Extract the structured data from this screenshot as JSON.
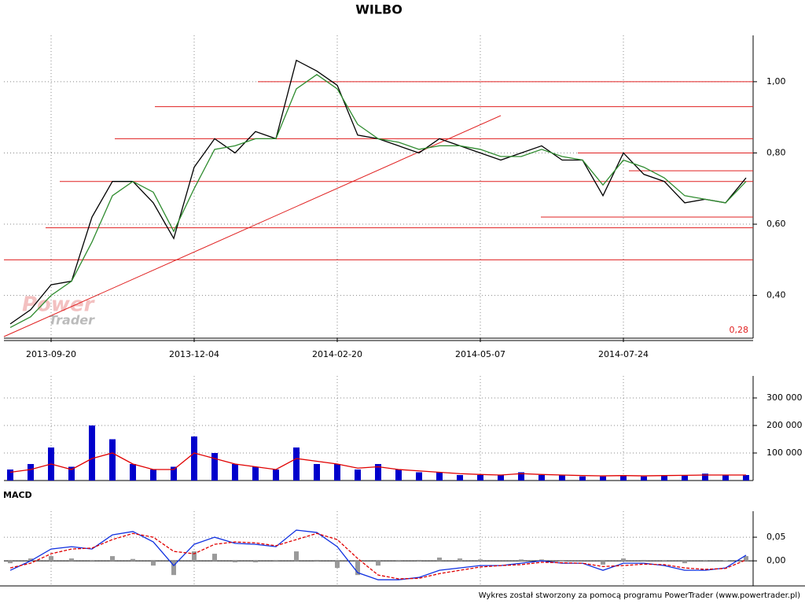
{
  "chart_data": [
    {
      "type": "line",
      "title": "WILBO",
      "categories": [
        null,
        null,
        "2013-09-20",
        null,
        null,
        null,
        null,
        null,
        null,
        "2013-12-04",
        null,
        null,
        null,
        null,
        null,
        null,
        "2014-02-20",
        null,
        null,
        null,
        null,
        null,
        null,
        "2014-05-07",
        null,
        null,
        null,
        null,
        null,
        null,
        "2014-07-24",
        null,
        null,
        null,
        null,
        null,
        null
      ],
      "series": [
        {
          "color": "#000000",
          "values": [
            0.32,
            0.36,
            0.43,
            0.44,
            0.62,
            0.72,
            0.72,
            0.66,
            0.56,
            0.76,
            0.84,
            0.8,
            0.86,
            0.84,
            1.06,
            1.03,
            0.99,
            0.85,
            0.84,
            0.82,
            0.8,
            0.84,
            0.82,
            0.8,
            0.78,
            0.8,
            0.82,
            0.78,
            0.78,
            0.68,
            0.8,
            0.74,
            0.72,
            0.66,
            0.67,
            0.66,
            0.73
          ]
        },
        {
          "color": "#2e8b2e",
          "values": [
            0.31,
            0.34,
            0.4,
            0.44,
            0.55,
            0.68,
            0.72,
            0.69,
            0.58,
            0.7,
            0.81,
            0.82,
            0.84,
            0.84,
            0.98,
            1.02,
            0.98,
            0.88,
            0.84,
            0.83,
            0.81,
            0.82,
            0.82,
            0.81,
            0.79,
            0.79,
            0.81,
            0.79,
            0.78,
            0.71,
            0.78,
            0.76,
            0.73,
            0.68,
            0.67,
            0.66,
            0.72
          ]
        }
      ],
      "ylim": [
        0.28,
        1.13
      ],
      "yticks": [
        {
          "value": 0.4,
          "label": "0,40"
        },
        {
          "value": 0.6,
          "label": "0,60"
        },
        {
          "value": 0.8,
          "label": "0,80"
        },
        {
          "value": 1.0,
          "label": "1,00"
        }
      ],
      "levels": [
        1.0,
        0.93,
        0.84,
        0.8,
        0.75,
        0.72,
        0.62,
        0.59,
        0.5
      ],
      "level_color": "#e02020",
      "low_marker": {
        "value": 0.28,
        "label": "0,28"
      },
      "watermark": [
        "Power",
        "Trader"
      ],
      "grid": true
    },
    {
      "type": "bar",
      "series": [
        {
          "kind": "bar",
          "color": "#0000cc",
          "values": [
            40000,
            60000,
            120000,
            50000,
            200000,
            150000,
            60000,
            40000,
            50000,
            160000,
            100000,
            60000,
            50000,
            40000,
            120000,
            60000,
            60000,
            40000,
            60000,
            40000,
            30000,
            30000,
            20000,
            20000,
            20000,
            30000,
            20000,
            20000,
            15000,
            15000,
            20000,
            15000,
            20000,
            20000,
            25000,
            20000,
            20000
          ]
        },
        {
          "kind": "line",
          "color": "#e00000",
          "values": [
            30000,
            40000,
            60000,
            40000,
            80000,
            100000,
            60000,
            40000,
            40000,
            100000,
            80000,
            60000,
            50000,
            40000,
            80000,
            70000,
            60000,
            45000,
            50000,
            40000,
            35000,
            30000,
            25000,
            22000,
            20000,
            25000,
            22000,
            20000,
            18000,
            17000,
            18000,
            17000,
            18000,
            19000,
            20000,
            20000,
            20000
          ]
        }
      ],
      "ylim": [
        0,
        380000
      ],
      "yticks": [
        {
          "value": 100000,
          "label": "100 000"
        },
        {
          "value": 200000,
          "label": "200 000"
        },
        {
          "value": 300000,
          "label": "300 000"
        }
      ],
      "grid": true
    },
    {
      "type": "line",
      "title": "MACD",
      "series": [
        {
          "kind": "bar",
          "color": "#9a9a9a",
          "values": [
            -0.005,
            0.005,
            0.01,
            0.005,
            -0.002,
            0.01,
            0.004,
            -0.01,
            -0.03,
            0.02,
            0.015,
            -0.003,
            -0.003,
            -0.002,
            0.02,
            0.002,
            -0.015,
            -0.03,
            -0.01,
            -0.002,
            0.002,
            0.007,
            0.005,
            0.003,
            0,
            0.003,
            0.003,
            -0.001,
            0,
            -0.008,
            0.005,
            0.002,
            -0.002,
            -0.005,
            -0.002,
            0.001,
            0.01
          ]
        },
        {
          "kind": "line",
          "color": "#1030e0",
          "values": [
            -0.02,
            0.0,
            0.025,
            0.03,
            0.025,
            0.055,
            0.062,
            0.04,
            -0.01,
            0.035,
            0.05,
            0.037,
            0.035,
            0.03,
            0.065,
            0.06,
            0.03,
            -0.025,
            -0.04,
            -0.04,
            -0.035,
            -0.02,
            -0.015,
            -0.01,
            -0.01,
            -0.005,
            0.0,
            -0.005,
            -0.005,
            -0.02,
            -0.005,
            -0.005,
            -0.01,
            -0.02,
            -0.02,
            -0.015,
            0.012
          ]
        },
        {
          "kind": "dashed",
          "color": "#e00000",
          "values": [
            -0.015,
            -0.005,
            0.015,
            0.025,
            0.027,
            0.045,
            0.058,
            0.05,
            0.02,
            0.015,
            0.035,
            0.04,
            0.038,
            0.032,
            0.045,
            0.058,
            0.045,
            0.005,
            -0.03,
            -0.038,
            -0.037,
            -0.027,
            -0.02,
            -0.013,
            -0.01,
            -0.008,
            -0.003,
            -0.004,
            -0.005,
            -0.012,
            -0.01,
            -0.007,
            -0.008,
            -0.015,
            -0.018,
            -0.016,
            0.002
          ]
        }
      ],
      "ylim": [
        -0.053,
        0.105
      ],
      "yticks": [
        {
          "value": 0,
          "label": "0,00"
        },
        {
          "value": 0.05,
          "label": "0,05"
        }
      ],
      "grid": true
    }
  ],
  "footer": "Wykres został stworzony za pomocą programu PowerTrader (www.powertrader.pl)"
}
